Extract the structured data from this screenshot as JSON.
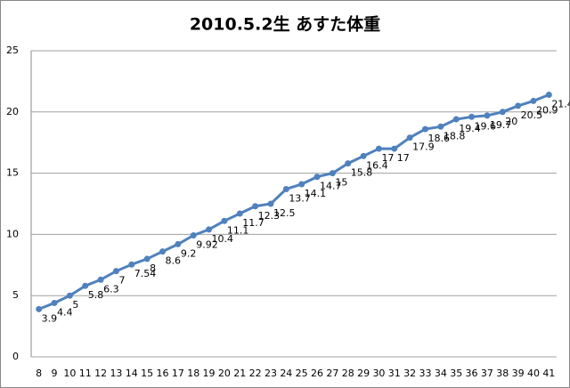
{
  "chart_data": {
    "type": "line",
    "title": "2010.5.2生 あすた体重",
    "categories": [
      8,
      9,
      10,
      11,
      12,
      13,
      14,
      15,
      16,
      17,
      18,
      19,
      20,
      21,
      22,
      23,
      24,
      25,
      26,
      27,
      28,
      29,
      30,
      31,
      32,
      33,
      34,
      35,
      36,
      37,
      38,
      39,
      40,
      41
    ],
    "values": [
      3.9,
      4.4,
      5,
      5.8,
      6.3,
      7,
      7.54,
      8,
      8.6,
      9.2,
      9.92,
      10.4,
      11.1,
      11.7,
      12.3,
      12.5,
      13.7,
      14.1,
      14.7,
      15,
      15.8,
      16.4,
      17,
      17,
      17.9,
      18.6,
      18.8,
      19.4,
      19.6,
      19.7,
      20,
      20.5,
      20.9,
      21.4
    ],
    "color": "#4f81bd",
    "ylim": [
      0,
      25
    ],
    "yticks": [
      0,
      5,
      10,
      15,
      20,
      25
    ],
    "grid": true
  }
}
